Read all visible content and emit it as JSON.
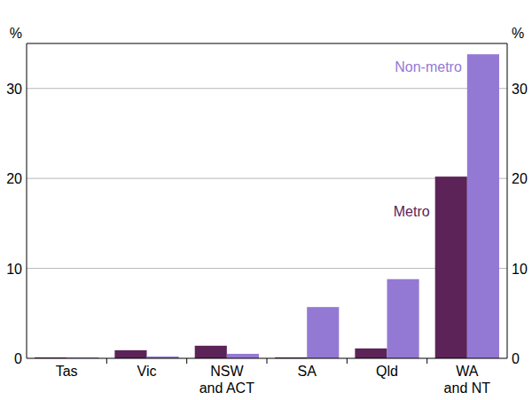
{
  "chart_data": {
    "type": "bar",
    "categories": [
      "Tas",
      "Vic",
      "NSW and ACT",
      "SA",
      "Qld",
      "WA and NT"
    ],
    "series": [
      {
        "name": "Metro",
        "color": "#5b2358",
        "values": [
          0.1,
          0.9,
          1.4,
          0.1,
          1.1,
          20.2
        ]
      },
      {
        "name": "Non-metro",
        "color": "#9479d4",
        "values": [
          0.1,
          0.2,
          0.5,
          5.7,
          8.8,
          33.8
        ]
      }
    ],
    "y_label": "%",
    "ylim": [
      0,
      35
    ],
    "yticks": [
      0,
      10,
      20,
      30
    ],
    "grid": true
  }
}
